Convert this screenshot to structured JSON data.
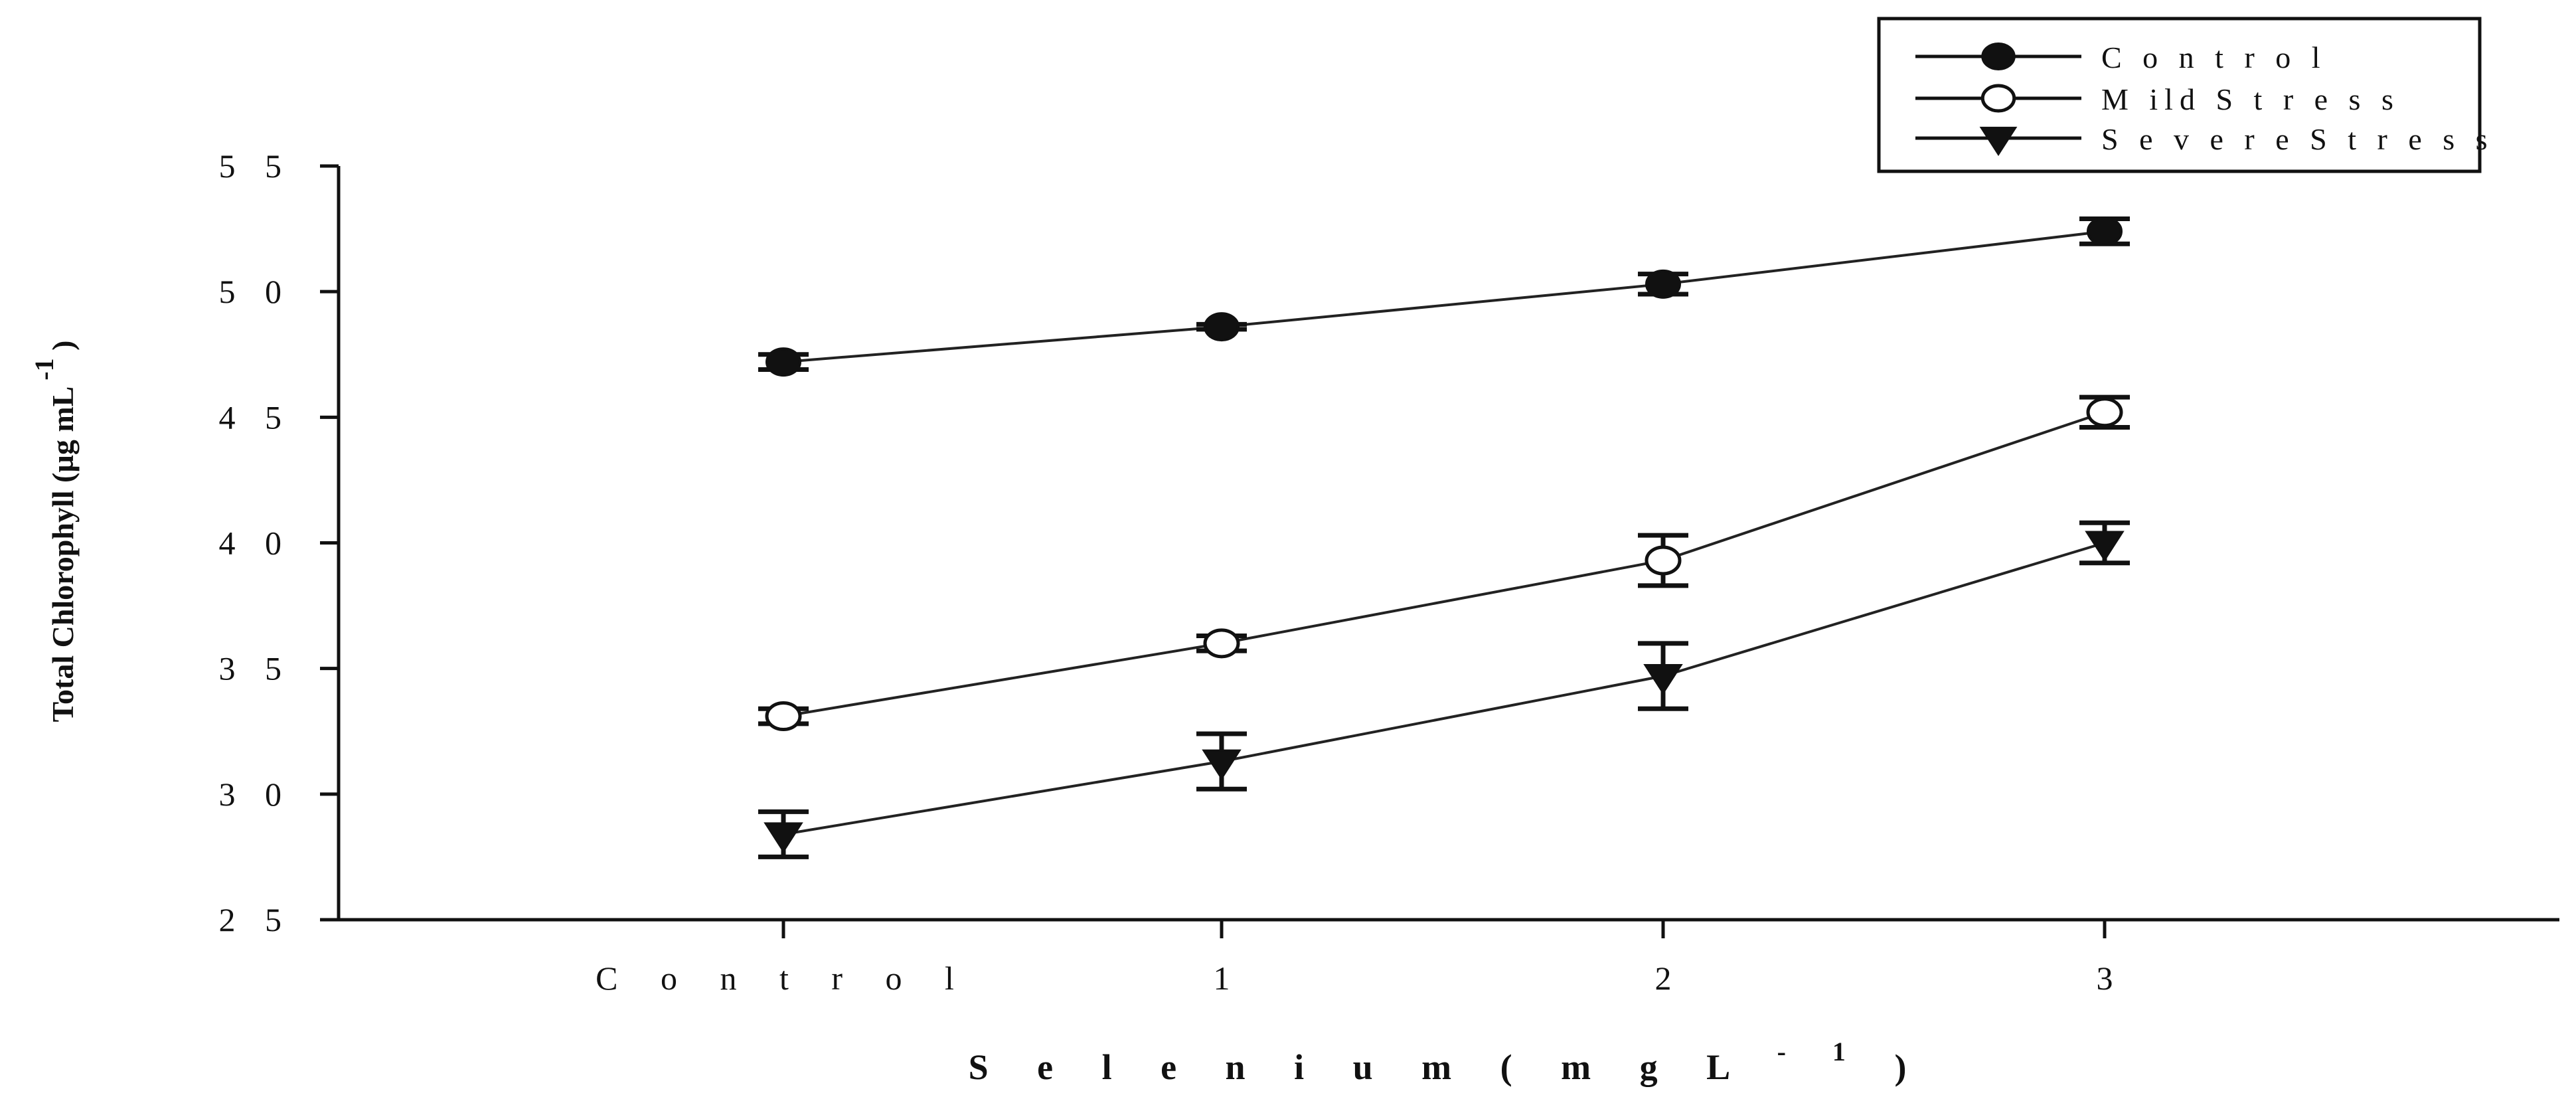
{
  "chart_data": {
    "type": "line",
    "xlabel": "Selenium (mg L -1)",
    "xlabel_parts": {
      "main": "S e l e n i u m   ( m g   L",
      "sup": "- 1",
      "close": ")"
    },
    "ylabel": "Total Chlorophyll (µg mL -1)",
    "ylabel_parts": {
      "main": "Total Chlorophyll (µg mL",
      "sup": "-1",
      "close": ")"
    },
    "categories": [
      "Control",
      "1",
      "2",
      "3"
    ],
    "category_labels": [
      "C o n t r o l",
      "1",
      "2",
      "3"
    ],
    "ylim": [
      25,
      55
    ],
    "yticks": [
      25,
      30,
      35,
      40,
      45,
      50,
      55
    ],
    "ytick_labels": [
      "2 5",
      "3 0",
      "3 5",
      "4 0",
      "4 5",
      "5 0",
      "5 5"
    ],
    "legend_position": "top-right",
    "grid": false,
    "series": [
      {
        "name": "Control",
        "legend_label": "C o n t r o l",
        "marker": "filled-circle",
        "values": [
          47.2,
          48.6,
          50.3,
          52.4
        ],
        "errors": [
          0.3,
          0.1,
          0.4,
          0.5
        ]
      },
      {
        "name": "Mild Stress",
        "legend_label": "M ild  S t r e s s",
        "marker": "open-circle",
        "values": [
          33.1,
          36.0,
          39.3,
          45.2
        ],
        "errors": [
          0.3,
          0.3,
          1.0,
          0.6
        ]
      },
      {
        "name": "Severe Stress",
        "legend_label": "S e v e r e  S t r e s s",
        "marker": "filled-triangle-down",
        "values": [
          28.4,
          31.3,
          34.7,
          40.0
        ],
        "errors": [
          0.9,
          1.1,
          1.3,
          0.8
        ]
      }
    ]
  }
}
